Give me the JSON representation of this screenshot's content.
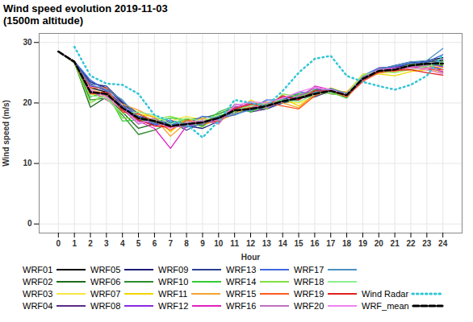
{
  "chart_data": {
    "type": "line",
    "title": "Wind speed evolution 2019-11-03",
    "subtitle": "(1500m altitude)",
    "x_label": "Hour",
    "y_label": "Wind speed (m/s)",
    "x": [
      0,
      1,
      2,
      3,
      4,
      5,
      6,
      7,
      8,
      9,
      10,
      11,
      12,
      13,
      14,
      15,
      16,
      17,
      18,
      19,
      20,
      21,
      22,
      23,
      24
    ],
    "xlim": [
      -1.2,
      25.2
    ],
    "xticks": [
      0,
      1,
      2,
      3,
      4,
      5,
      6,
      7,
      8,
      9,
      10,
      11,
      12,
      13,
      14,
      15,
      16,
      17,
      18,
      19,
      20,
      21,
      22,
      23,
      24
    ],
    "ylim": [
      -1.5,
      31.5
    ],
    "yticks": [
      0,
      10,
      20,
      30
    ],
    "grid": true,
    "legend": "bottom",
    "series": [
      {
        "name": "WRF01",
        "color": "#000000",
        "line_style": "solid",
        "values": [
          28.5,
          26.8,
          22.5,
          21.8,
          19.0,
          17.2,
          16.8,
          16.0,
          16.8,
          17.0,
          17.8,
          19.0,
          19.2,
          19.6,
          20.5,
          20.6,
          21.8,
          22.1,
          21.5,
          24.2,
          25.5,
          25.8,
          26.5,
          27.0,
          27.5
        ]
      },
      {
        "name": "WRF02",
        "color": "#1e6b1e",
        "line_style": "solid",
        "values": [
          28.5,
          26.7,
          19.3,
          21.0,
          18.5,
          15.8,
          16.5,
          16.5,
          17.0,
          16.2,
          17.8,
          18.5,
          18.8,
          19.2,
          20.0,
          21.0,
          21.2,
          21.8,
          21.0,
          23.8,
          25.0,
          25.2,
          26.0,
          26.8,
          27.0
        ]
      },
      {
        "name": "WRF03",
        "color": "#f5e642",
        "line_style": "solid",
        "values": [
          28.5,
          26.8,
          22.0,
          21.2,
          19.5,
          18.5,
          17.5,
          17.0,
          17.8,
          17.2,
          17.0,
          18.2,
          19.5,
          19.8,
          20.2,
          20.0,
          21.0,
          22.2,
          21.8,
          24.5,
          25.0,
          25.0,
          25.5,
          25.8,
          26.0
        ]
      },
      {
        "name": "WRF04",
        "color": "#5b2a86",
        "line_style": "solid",
        "values": [
          28.5,
          26.9,
          23.0,
          22.0,
          19.8,
          17.0,
          16.5,
          16.2,
          16.0,
          16.5,
          17.2,
          19.5,
          18.5,
          19.0,
          20.8,
          21.2,
          22.0,
          21.8,
          21.2,
          23.5,
          25.8,
          26.0,
          26.5,
          26.2,
          25.5
        ]
      },
      {
        "name": "WRF05",
        "color": "#1c1c78",
        "line_style": "solid",
        "values": [
          28.5,
          26.8,
          23.5,
          22.5,
          20.0,
          17.8,
          17.2,
          16.5,
          16.2,
          15.8,
          17.0,
          18.8,
          19.8,
          20.0,
          20.5,
          21.5,
          21.5,
          22.3,
          21.0,
          24.0,
          25.5,
          26.2,
          26.8,
          26.5,
          26.8
        ]
      },
      {
        "name": "WRF06",
        "color": "#2e8b2e",
        "line_style": "solid",
        "values": [
          28.5,
          26.6,
          20.5,
          20.8,
          18.0,
          14.8,
          15.5,
          16.8,
          17.2,
          17.5,
          18.2,
          19.2,
          19.0,
          19.5,
          20.0,
          20.5,
          22.2,
          22.0,
          21.5,
          24.3,
          25.2,
          25.5,
          26.0,
          26.3,
          26.2
        ]
      },
      {
        "name": "WRF07",
        "color": "#f2d600",
        "line_style": "solid",
        "values": [
          28.5,
          26.8,
          21.5,
          21.0,
          18.8,
          18.0,
          17.8,
          15.2,
          17.5,
          16.5,
          17.5,
          18.0,
          20.5,
          19.2,
          20.8,
          19.5,
          21.3,
          22.5,
          21.6,
          24.8,
          24.8,
          24.5,
          25.2,
          25.5,
          25.0
        ]
      },
      {
        "name": "WRF08",
        "color": "#8a2be2",
        "line_style": "solid",
        "values": [
          28.5,
          26.7,
          22.8,
          22.2,
          19.2,
          17.5,
          16.2,
          17.2,
          16.0,
          17.0,
          16.8,
          19.0,
          18.8,
          19.8,
          20.2,
          21.0,
          22.5,
          21.5,
          21.2,
          24.0,
          25.6,
          25.8,
          26.2,
          26.5,
          26.0
        ]
      },
      {
        "name": "WRF09",
        "color": "#2c3e8f",
        "line_style": "solid",
        "values": [
          28.5,
          26.8,
          23.2,
          22.8,
          20.2,
          18.2,
          17.0,
          16.8,
          15.5,
          16.8,
          17.6,
          18.5,
          19.2,
          19.0,
          20.0,
          20.8,
          21.0,
          22.0,
          21.4,
          23.8,
          25.2,
          25.6,
          26.6,
          26.8,
          27.2
        ]
      },
      {
        "name": "WRF10",
        "color": "#33cc33",
        "line_style": "solid",
        "values": [
          28.5,
          26.7,
          21.0,
          21.8,
          17.0,
          17.2,
          16.8,
          17.5,
          17.2,
          16.5,
          18.5,
          19.5,
          18.5,
          19.8,
          20.6,
          21.5,
          21.8,
          21.8,
          20.8,
          24.2,
          25.4,
          25.4,
          26.3,
          26.0,
          26.8
        ]
      },
      {
        "name": "WRF11",
        "color": "#f7a233",
        "line_style": "solid",
        "values": [
          28.5,
          26.8,
          22.2,
          21.5,
          19.8,
          18.8,
          17.5,
          14.5,
          16.8,
          17.5,
          17.0,
          18.2,
          19.5,
          20.2,
          20.0,
          19.2,
          21.5,
          22.0,
          21.8,
          24.4,
          25.0,
          25.2,
          25.8,
          26.2,
          25.8
        ]
      },
      {
        "name": "WRF12",
        "color": "#e020c0",
        "line_style": "solid",
        "values": [
          28.5,
          26.8,
          21.8,
          21.2,
          19.0,
          17.0,
          15.8,
          12.5,
          16.2,
          16.8,
          17.2,
          19.2,
          20.0,
          19.5,
          21.0,
          20.5,
          22.8,
          22.2,
          21.0,
          23.8,
          25.5,
          25.8,
          26.0,
          25.8,
          25.2
        ]
      },
      {
        "name": "WRF13",
        "color": "#4169e1",
        "line_style": "solid",
        "values": [
          28.5,
          26.9,
          23.8,
          22.0,
          19.5,
          17.8,
          16.5,
          16.5,
          16.5,
          17.8,
          17.5,
          18.0,
          19.0,
          20.5,
          20.5,
          21.8,
          21.6,
          22.4,
          21.5,
          24.5,
          25.8,
          26.0,
          26.6,
          26.8,
          28.0
        ]
      },
      {
        "name": "WRF14",
        "color": "#80e040",
        "line_style": "solid",
        "values": [
          28.5,
          26.6,
          20.0,
          21.5,
          17.5,
          17.5,
          17.2,
          17.8,
          17.0,
          16.0,
          18.0,
          18.5,
          19.8,
          19.0,
          21.5,
          21.0,
          22.0,
          21.5,
          21.2,
          24.0,
          25.2,
          25.5,
          26.4,
          26.5,
          26.3
        ]
      },
      {
        "name": "WRF15",
        "color": "#ff5a1f",
        "line_style": "solid",
        "values": [
          28.5,
          26.8,
          22.5,
          22.5,
          18.5,
          18.2,
          17.0,
          15.5,
          17.2,
          16.5,
          17.0,
          19.0,
          19.2,
          20.0,
          19.5,
          19.0,
          21.2,
          22.0,
          21.0,
          23.6,
          25.0,
          25.3,
          25.8,
          25.5,
          25.5
        ]
      },
      {
        "name": "WRF16",
        "color": "#c070c0",
        "line_style": "solid",
        "values": [
          28.5,
          26.7,
          22.0,
          20.5,
          19.0,
          16.5,
          17.5,
          16.0,
          16.2,
          17.2,
          16.5,
          19.8,
          19.5,
          19.2,
          20.2,
          21.2,
          22.5,
          22.0,
          21.2,
          23.9,
          25.7,
          25.7,
          26.0,
          26.2,
          25.0
        ]
      },
      {
        "name": "WRF17",
        "color": "#4a90c0",
        "line_style": "solid",
        "values": [
          28.5,
          26.8,
          23.0,
          22.2,
          20.5,
          17.5,
          16.8,
          16.8,
          16.0,
          16.5,
          17.8,
          18.2,
          18.8,
          19.5,
          20.4,
          20.8,
          21.8,
          22.3,
          21.6,
          24.2,
          25.6,
          26.2,
          26.8,
          27.0,
          29.0
        ]
      },
      {
        "name": "WRF18",
        "color": "#90ee90",
        "line_style": "solid",
        "values": [
          28.5,
          26.8,
          21.2,
          20.8,
          18.2,
          18.5,
          18.0,
          16.5,
          17.5,
          17.0,
          18.0,
          18.8,
          19.5,
          20.0,
          20.5,
          20.2,
          21.4,
          21.8,
          21.5,
          24.6,
          25.3,
          25.0,
          25.6,
          26.0,
          26.8
        ]
      },
      {
        "name": "WRF19",
        "color": "#e02020",
        "line_style": "solid",
        "values": [
          28.5,
          26.7,
          21.5,
          21.8,
          18.8,
          17.2,
          16.2,
          16.0,
          16.5,
          16.8,
          17.5,
          19.0,
          19.8,
          19.5,
          21.2,
          20.5,
          22.0,
          22.0,
          21.3,
          24.0,
          25.2,
          25.4,
          25.5,
          25.0,
          24.6
        ]
      },
      {
        "name": "WRF20",
        "color": "#ee82ee",
        "line_style": "solid",
        "values": [
          28.5,
          26.8,
          22.2,
          21.0,
          19.2,
          16.8,
          17.0,
          15.8,
          16.8,
          17.0,
          17.2,
          19.5,
          20.2,
          20.0,
          20.8,
          21.8,
          22.6,
          22.2,
          21.4,
          24.1,
          25.5,
          25.6,
          25.8,
          25.5,
          24.8
        ]
      },
      {
        "name": "Wind Radar",
        "color": "#33c6d6",
        "line_style": "dotted",
        "values": [
          null,
          29.3,
          24.5,
          23.2,
          23.0,
          21.5,
          18.0,
          17.0,
          16.5,
          14.3,
          17.0,
          20.5,
          20.0,
          19.5,
          22.0,
          25.0,
          27.3,
          27.8,
          24.5,
          23.5,
          22.8,
          22.2,
          23.0,
          24.5,
          28.0
        ]
      },
      {
        "name": "WRF_mean",
        "color": "#000000",
        "line_style": "dashed",
        "values": [
          28.5,
          26.8,
          21.8,
          21.5,
          19.2,
          17.5,
          17.0,
          16.2,
          16.5,
          16.8,
          17.5,
          18.8,
          19.0,
          19.5,
          20.3,
          20.8,
          21.5,
          22.0,
          21.3,
          24.0,
          25.3,
          25.5,
          26.2,
          26.5,
          26.5
        ]
      }
    ]
  }
}
